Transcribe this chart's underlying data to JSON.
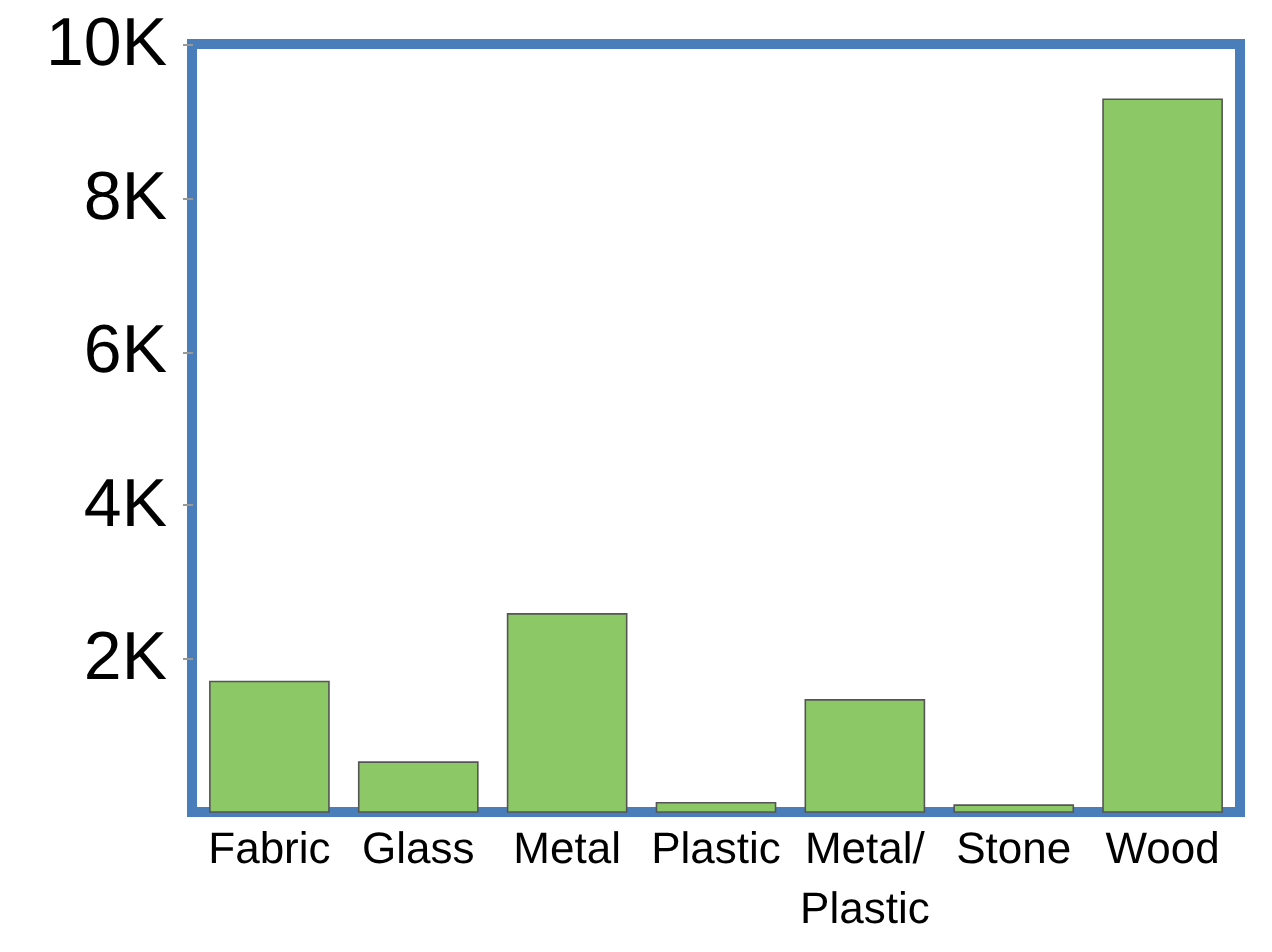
{
  "chart_data": {
    "type": "bar",
    "categories": [
      "Fabric",
      "Glass",
      "Metal",
      "Plastic",
      "Metal/ Plastic",
      "Stone",
      "Wood"
    ],
    "values": [
      1700,
      650,
      2580,
      120,
      1460,
      90,
      9280
    ],
    "color": "#8cc866",
    "ylim": [
      0,
      10000
    ],
    "yticks": [
      {
        "value": 2000,
        "label": "2K"
      },
      {
        "value": 4000,
        "label": "4K"
      },
      {
        "value": 6000,
        "label": "6K"
      },
      {
        "value": 8000,
        "label": "8K"
      },
      {
        "value": 10000,
        "label": "10K"
      }
    ],
    "grid": false
  }
}
